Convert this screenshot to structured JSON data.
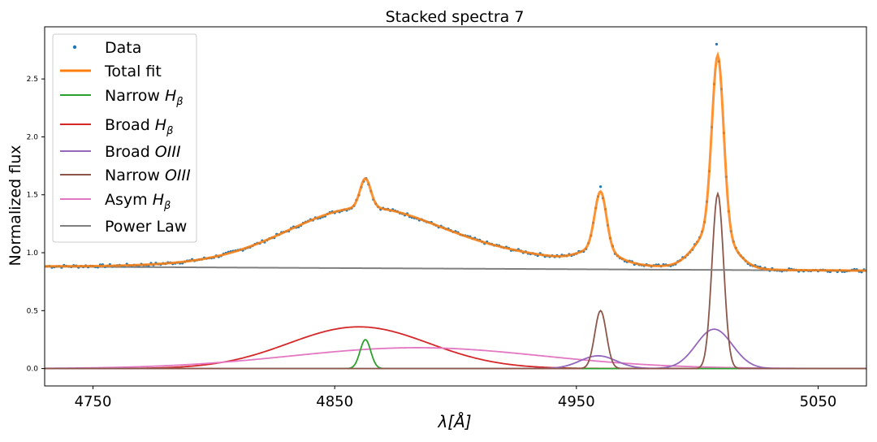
{
  "chart_data": {
    "type": "line",
    "title": "Stacked spectra 7",
    "xlabel": "λ[Å]",
    "ylabel": "Normalized flux",
    "xlim": [
      4730,
      5070
    ],
    "ylim": [
      -0.15,
      2.95
    ],
    "xticks": [
      4750,
      4850,
      4950,
      5050
    ],
    "yticks": [
      0.0,
      0.5,
      1.0,
      1.5,
      2.0,
      2.5
    ],
    "ytick_labels": [
      "0.0",
      "0.5",
      "1.0",
      "1.5",
      "2.0",
      "2.5"
    ],
    "grid": false,
    "legend_position": "top-left",
    "legend": [
      {
        "key": "data",
        "label": "Data",
        "marker": "dot",
        "color": "#1f77b4"
      },
      {
        "key": "total",
        "label": "Total fit",
        "marker": "line",
        "color": "#ff7f0e"
      },
      {
        "key": "narrow_hb",
        "label": "Narrow ",
        "label_italic": "H",
        "label_sub": "β",
        "marker": "line",
        "color": "#2ca02c"
      },
      {
        "key": "broad_hb",
        "label": "Broad ",
        "label_italic": "H",
        "label_sub": "β",
        "marker": "line",
        "color": "#d62728"
      },
      {
        "key": "broad_oiii",
        "label": "Broad ",
        "label_italic": "OIII",
        "label_sub": "",
        "marker": "line",
        "color": "#9467bd"
      },
      {
        "key": "narrow_oiii",
        "label": "Narrow ",
        "label_italic": "OIII",
        "label_sub": "",
        "marker": "line",
        "color": "#8c564b"
      },
      {
        "key": "asym_hb",
        "label": "Asym ",
        "label_italic": "H",
        "label_sub": "β",
        "marker": "line",
        "color": "#e377c2"
      },
      {
        "key": "powerlaw",
        "label": "Power Law",
        "marker": "line",
        "color": "#7f7f7f"
      }
    ],
    "x_range": [
      4730,
      5070
    ],
    "x_step": 1,
    "components": {
      "powerlaw": {
        "type": "linear",
        "y_at_xmin": 0.88,
        "y_at_xmax": 0.845
      },
      "narrow_hb": {
        "type": "gaussian",
        "amp": 0.25,
        "center": 4862.7,
        "sigma": 2.2
      },
      "broad_hb": {
        "type": "gaussian",
        "amp": 0.36,
        "center": 4860,
        "sigma": 29
      },
      "asym_hb": {
        "type": "gaussian",
        "amp": 0.18,
        "center": 4884,
        "sigma": 52
      },
      "broad_oiii": [
        {
          "type": "gaussian",
          "amp": 0.11,
          "center": 4959,
          "sigma": 7.5
        },
        {
          "type": "gaussian",
          "amp": 0.34,
          "center": 5007,
          "sigma": 7.5
        }
      ],
      "narrow_oiii": [
        {
          "type": "gaussian",
          "amp": 0.5,
          "center": 4960,
          "sigma": 2.4
        },
        {
          "type": "gaussian",
          "amp": 1.51,
          "center": 5008.5,
          "sigma": 2.4
        }
      ]
    },
    "data_points": {
      "x_start": 4731,
      "x_end": 5069,
      "x_step": 1,
      "noise_amplitude": 0.012,
      "peak_points": [
        [
          5008,
          2.8
        ],
        [
          5009,
          2.65
        ],
        [
          4960,
          1.57
        ]
      ]
    }
  }
}
